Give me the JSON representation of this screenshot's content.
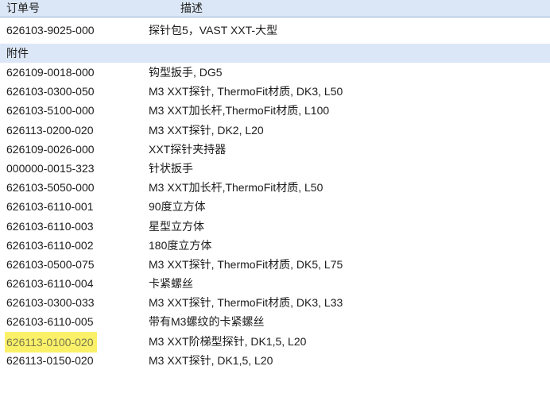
{
  "table": {
    "columns": {
      "order": "订单号",
      "desc": "描述"
    },
    "product_row": {
      "order": "626103-9025-000",
      "desc": "探针包5，VAST XXT-大型"
    },
    "section_label": "附件",
    "rows": [
      {
        "order": "626109-0018-000",
        "desc": "钩型扳手, DG5",
        "highlighted": false
      },
      {
        "order": "626103-0300-050",
        "desc": "M3 XXT探针, ThermoFit材质, DK3, L50",
        "highlighted": false
      },
      {
        "order": "626103-5100-000",
        "desc": "M3 XXT加长杆,ThermoFit材质, L100",
        "highlighted": false
      },
      {
        "order": "626113-0200-020",
        "desc": "M3 XXT探针, DK2, L20",
        "highlighted": false
      },
      {
        "order": "626109-0026-000",
        "desc": "XXT探针夹持器",
        "highlighted": false
      },
      {
        "order": "000000-0015-323",
        "desc": "针状扳手",
        "highlighted": false
      },
      {
        "order": "626103-5050-000",
        "desc": "M3 XXT加长杆,ThermoFit材质, L50",
        "highlighted": false
      },
      {
        "order": "626103-6110-001",
        "desc": "90度立方体",
        "highlighted": false
      },
      {
        "order": "626103-6110-003",
        "desc": "星型立方体",
        "highlighted": false
      },
      {
        "order": "626103-6110-002",
        "desc": "180度立方体",
        "highlighted": false
      },
      {
        "order": "626103-0500-075",
        "desc": "M3 XXT探针, ThermoFit材质, DK5, L75",
        "highlighted": false
      },
      {
        "order": "626103-6110-004",
        "desc": "卡紧螺丝",
        "highlighted": false
      },
      {
        "order": "626103-0300-033",
        "desc": "M3 XXT探针, ThermoFit材质, DK3, L33",
        "highlighted": false
      },
      {
        "order": "626103-6110-005",
        "desc": "带有M3螺纹的卡紧螺丝",
        "highlighted": false
      },
      {
        "order": "626113-0100-020",
        "desc": "M3 XXT阶梯型探针, DK1,5, L20",
        "highlighted": true
      },
      {
        "order": "626113-0150-020",
        "desc": "M3 XXT探针, DK1,5, L20",
        "highlighted": false
      }
    ],
    "colors": {
      "band_bg": "#dbe7f6",
      "band_border": "#95b3d7",
      "highlight_bg": "#fbf169",
      "highlight_text": "#77774e",
      "text": "#1c1c1c"
    }
  }
}
